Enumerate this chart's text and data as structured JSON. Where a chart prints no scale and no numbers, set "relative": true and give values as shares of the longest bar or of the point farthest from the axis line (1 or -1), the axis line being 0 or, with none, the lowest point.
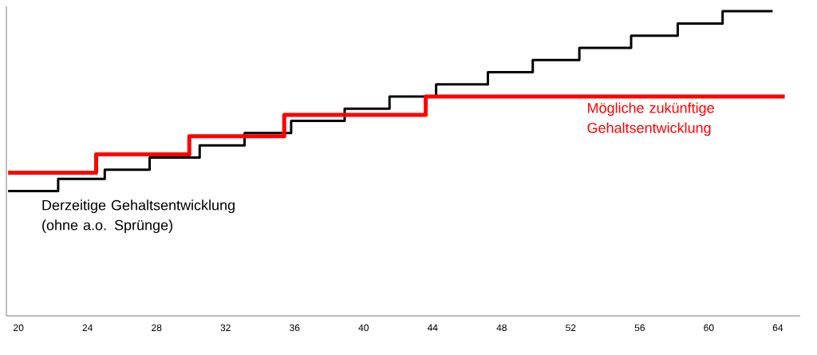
{
  "chart_data": {
    "type": "step",
    "relative": true,
    "xlim": [
      19.3,
      65.3
    ],
    "xticks": [
      20,
      24,
      28,
      32,
      36,
      40,
      44,
      48,
      52,
      56,
      60,
      64
    ],
    "tick_labels": "x",
    "series": [
      {
        "name": "Derzeitige Gehaltsentwicklung (ohne a.o. Sprünge)",
        "color": "#000000",
        "x": [
          19.4,
          22.3,
          25.0,
          27.6,
          30.5,
          33.1,
          35.8,
          38.9,
          41.5,
          44.2,
          47.2,
          49.8,
          52.5,
          55.5,
          58.2,
          60.8,
          63.7
        ],
        "values": [
          0.41,
          0.45,
          0.48,
          0.52,
          0.56,
          0.6,
          0.64,
          0.68,
          0.72,
          0.76,
          0.8,
          0.84,
          0.88,
          0.92,
          0.96,
          1.0,
          1.0
        ]
      },
      {
        "name": "Mögliche zukünftige Gehaltsentwicklung",
        "color": "#ff0000",
        "x": [
          19.4,
          24.5,
          29.9,
          35.4,
          43.6,
          64.4
        ],
        "values": [
          0.47,
          0.53,
          0.59,
          0.66,
          0.72,
          0.72
        ]
      }
    ]
  }
}
